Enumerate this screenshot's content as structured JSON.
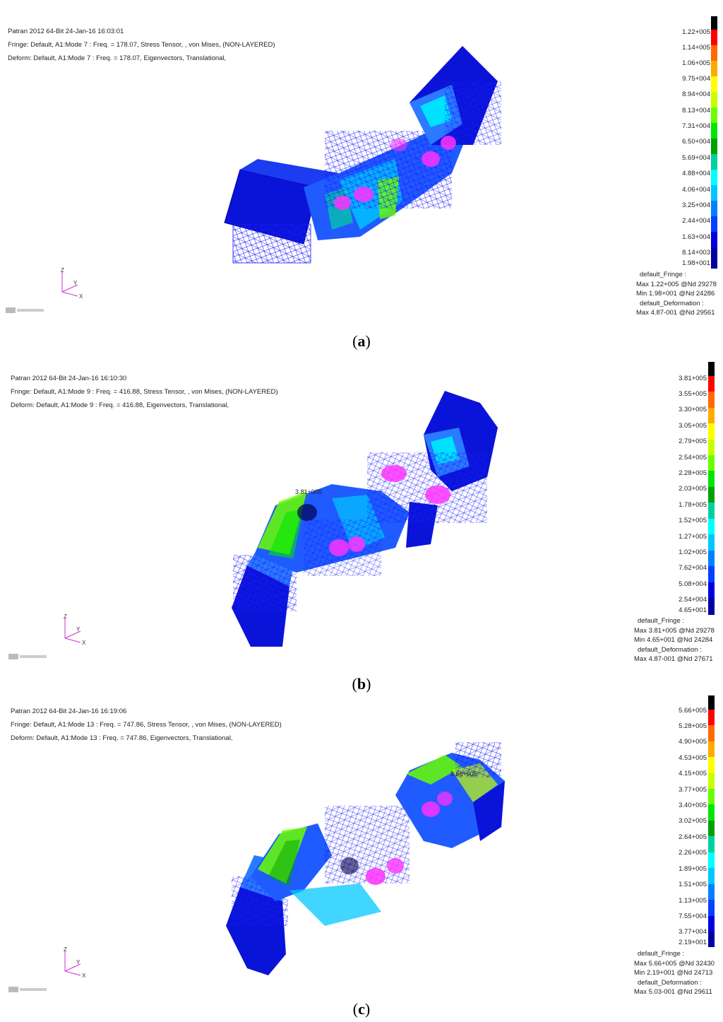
{
  "panels": [
    {
      "id": "a",
      "header": [
        "Patran 2012 64-Bit 24-Jan-16 16:03:01",
        "Fringe: Default, A1:Mode 7 : Freq. = 178.07, Stress Tensor, , von Mises, (NON-LAYERED)",
        "Deform: Default, A1:Mode 7 : Freq. = 178.07, Eigenvectors, Translational,"
      ],
      "legend_values": [
        "1.22+005",
        "1.14+005",
        "1.06+005",
        "9.75+004",
        "8.94+004",
        "8.13+004",
        "7.31+004",
        "6.50+004",
        "5.69+004",
        "4.88+004",
        "4.06+004",
        "3.25+004",
        "2.44+004",
        "1.63+004",
        "8.14+003",
        "1.98+001"
      ],
      "stats": [
        "default_Fringe :",
        "Max 1.22+005 @Nd 29278",
        "Min 1.98+001 @Nd 24286",
        "default_Deformation :",
        "Max 4.87-001 @Nd 29561"
      ],
      "max_label": "",
      "axes": {
        "z": "Z",
        "y": "Y",
        "x": "X"
      },
      "caption": "a"
    },
    {
      "id": "b",
      "header": [
        "Patran 2012 64-Bit 24-Jan-16 16:10:30",
        "Fringe: Default, A1:Mode 9 : Freq. = 416.88, Stress Tensor, , von Mises, (NON-LAYERED)",
        "Deform: Default, A1:Mode 9 : Freq. = 416.88, Eigenvectors, Translational,"
      ],
      "legend_values": [
        "3.81+005",
        "3.55+005",
        "3.30+005",
        "3.05+005",
        "2.79+005",
        "2.54+005",
        "2.28+005",
        "2.03+005",
        "1.78+005",
        "1.52+005",
        "1.27+005",
        "1.02+005",
        "7.62+004",
        "5.08+004",
        "2.54+004",
        "4.65+001"
      ],
      "stats": [
        "default_Fringe :",
        "Max 3.81+005 @Nd 29278",
        "Min 4.65+001 @Nd 24284",
        "default_Deformation :",
        "Max 4.87-001 @Nd 27671"
      ],
      "max_label": "3.81+005",
      "axes": {
        "z": "Z",
        "y": "Y",
        "x": "X"
      },
      "caption": "b"
    },
    {
      "id": "c",
      "header": [
        "Patran 2012 64-Bit 24-Jan-16 16:19:06",
        "Fringe: Default, A1:Mode 13 : Freq. = 747.86, Stress Tensor, , von Mises, (NON-LAYERED)",
        "Deform: Default, A1:Mode 13 : Freq. = 747.86, Eigenvectors, Translational,"
      ],
      "legend_values": [
        "5.66+005",
        "5.28+005",
        "4.90+005",
        "4.53+005",
        "4.15+005",
        "3.77+005",
        "3.40+005",
        "3.02+005",
        "2.64+005",
        "2.26+005",
        "1.89+005",
        "1.51+005",
        "1.13+005",
        "7.55+004",
        "3.77+004",
        "2.19+001"
      ],
      "stats": [
        "default_Fringe :",
        "Max 5.66+005 @Nd 32430",
        "Min 2.19+001 @Nd 24713",
        "default_Deformation :",
        "Max 5.03-001 @Nd 29611"
      ],
      "max_label": "5.66+005",
      "axes": {
        "z": "Z",
        "y": "Y",
        "x": "X"
      },
      "caption": "c"
    }
  ],
  "colors": {
    "fringe_scale": [
      "#000000",
      "#ff0000",
      "#ff6a00",
      "#ffaa00",
      "#ffff00",
      "#c8ff00",
      "#6aff00",
      "#00e600",
      "#00a000",
      "#00d0a0",
      "#00ffff",
      "#00c8ff",
      "#0080ff",
      "#0040ff",
      "#0000e0",
      "#0000a0"
    ],
    "mesh": "#1a1aff",
    "bolt": "#ff33ff"
  }
}
